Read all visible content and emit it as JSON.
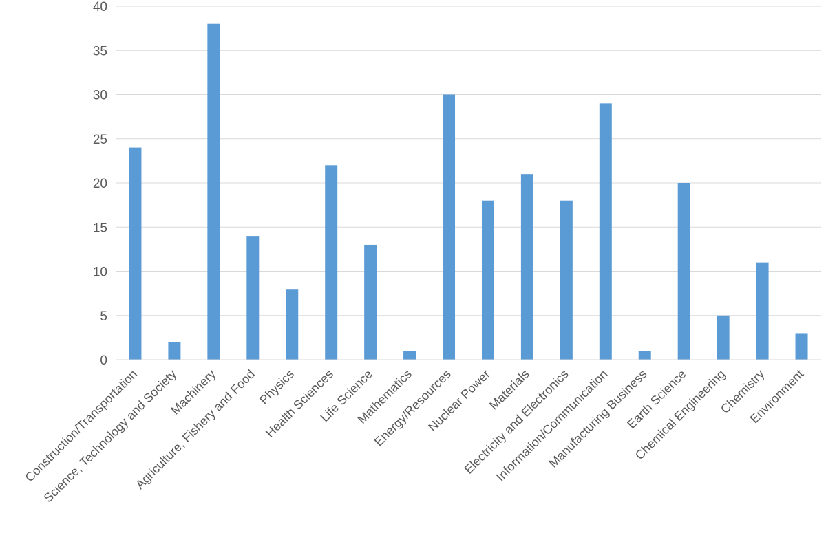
{
  "chart_data": {
    "type": "bar",
    "categories": [
      "Construction/Transportation",
      "Science, Technology and Society",
      "Machinery",
      "Agriculture, Fishery and Food",
      "Physics",
      "Health Sciences",
      "Life Science",
      "Mathematics",
      "Energy/Resources",
      "Nuclear Power",
      "Materials",
      "Electricity and Electronics",
      "Information/Communication",
      "Manufacturing Business",
      "Earth Science",
      "Chemical Engineering",
      "Chemistry",
      "Environment"
    ],
    "values": [
      24,
      2,
      38,
      14,
      8,
      22,
      13,
      1,
      30,
      18,
      21,
      18,
      29,
      1,
      20,
      5,
      11,
      3
    ],
    "title": "",
    "xlabel": "",
    "ylabel": "",
    "ylim": [
      0,
      40
    ],
    "yticks": [
      "0",
      "5",
      "10",
      "15",
      "20",
      "25",
      "30",
      "35",
      "40"
    ],
    "grid": true,
    "legend": "none",
    "bar_color": "#5b9bd5"
  }
}
